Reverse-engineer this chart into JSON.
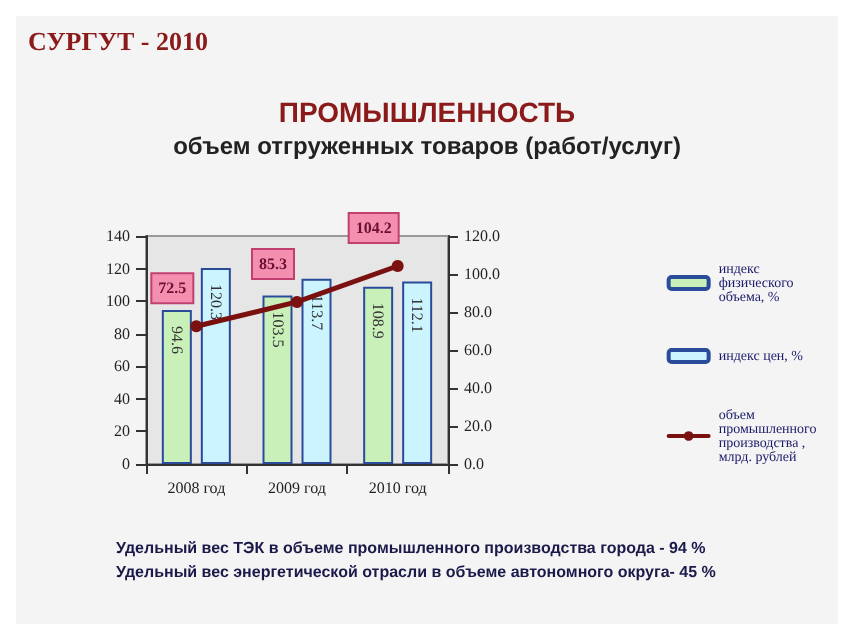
{
  "chart_data": {
    "type": "bar",
    "title": "ПРОМЫШЛЕННОСТЬ",
    "subtitle": "объем отгруженных товаров (работ/услуг)",
    "annotations": [
      "СУРГУТ - 2010",
      "Удельный вес ТЭК в объеме промышленного производства города - 94 %",
      "Удельный вес энергетической отрасли в объеме автономного округа- 45 %"
    ],
    "categories": [
      "2008 год",
      "2009 год",
      "2010 год"
    ],
    "series": [
      {
        "name": "индекс физического объема, %",
        "color": "#c8f0b8",
        "values": [
          94.6,
          103.5,
          108.9
        ]
      },
      {
        "name": "индекс цен, %",
        "color": "#ccf4ff",
        "values": [
          120.3,
          113.7,
          112.1
        ]
      },
      {
        "name": "объем промышленного производства , млрд. рублей",
        "type": "line",
        "axis": "y2",
        "color": "#7a1010",
        "values": [
          72.5,
          85.3,
          104.2
        ]
      }
    ],
    "ylim": [
      0,
      140
    ],
    "yticks": [
      0,
      20,
      40,
      60,
      80,
      100,
      120,
      140
    ],
    "y2lim": [
      0,
      120
    ],
    "y2ticks": [
      {
        "value": 0,
        "label": "0.0"
      },
      {
        "value": 20,
        "label": "20.0"
      },
      {
        "value": 40,
        "label": "40.0"
      },
      {
        "value": 60,
        "label": "60.0"
      },
      {
        "value": 80,
        "label": "80.0"
      },
      {
        "value": 100,
        "label": "100.0"
      },
      {
        "value": 120,
        "label": "120.0"
      }
    ],
    "data_labels": true,
    "legend": "right",
    "marker": "circle",
    "grid": false
  }
}
